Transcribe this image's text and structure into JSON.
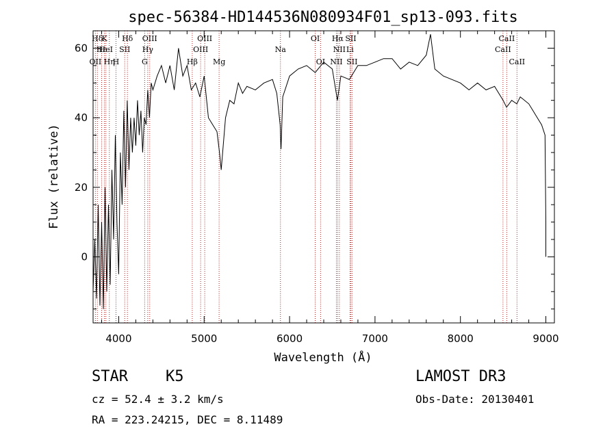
{
  "chart_data": {
    "type": "line",
    "title": "spec-56384-HD144536N080934F01_sp13-093.fits",
    "xlabel": "Wavelength (Å)",
    "ylabel": "Flux (relative)",
    "xlim": [
      3700,
      9100
    ],
    "ylim": [
      -19,
      65
    ],
    "xticks": [
      4000,
      5000,
      6000,
      7000,
      8000,
      9000
    ],
    "yticks": [
      0,
      20,
      40,
      60
    ],
    "series": [
      {
        "name": "flux",
        "x": [
          3700,
          3720,
          3740,
          3760,
          3780,
          3800,
          3820,
          3840,
          3860,
          3880,
          3900,
          3920,
          3940,
          3960,
          3980,
          4000,
          4020,
          4040,
          4060,
          4080,
          4100,
          4120,
          4140,
          4160,
          4180,
          4200,
          4220,
          4240,
          4260,
          4280,
          4300,
          4320,
          4340,
          4360,
          4380,
          4400,
          4450,
          4500,
          4550,
          4600,
          4650,
          4700,
          4750,
          4800,
          4850,
          4900,
          4950,
          5000,
          5050,
          5100,
          5150,
          5180,
          5200,
          5250,
          5300,
          5350,
          5400,
          5450,
          5500,
          5600,
          5700,
          5800,
          5850,
          5890,
          5900,
          5920,
          6000,
          6100,
          6200,
          6300,
          6400,
          6500,
          6560,
          6600,
          6700,
          6800,
          6900,
          7000,
          7100,
          7200,
          7300,
          7400,
          7500,
          7600,
          7650,
          7700,
          7800,
          7900,
          8000,
          8100,
          8200,
          8300,
          8400,
          8500,
          8540,
          8600,
          8660,
          8700,
          8800,
          8850,
          8900,
          8950,
          8990,
          9000,
          9000
        ],
        "y": [
          -10,
          5,
          -12,
          15,
          -14,
          10,
          -15,
          20,
          -10,
          15,
          -8,
          25,
          5,
          35,
          10,
          -5,
          30,
          15,
          42,
          20,
          45,
          25,
          40,
          30,
          40,
          32,
          45,
          35,
          42,
          30,
          40,
          38,
          48,
          40,
          50,
          48,
          52,
          55,
          50,
          55,
          48,
          60,
          52,
          55,
          48,
          50,
          46,
          52,
          40,
          38,
          36,
          30,
          25,
          40,
          45,
          44,
          50,
          47,
          49,
          48,
          50,
          51,
          47,
          38,
          31,
          46,
          52,
          54,
          55,
          53,
          56,
          54,
          45,
          52,
          51,
          55,
          55,
          56,
          57,
          57,
          54,
          56,
          55,
          58,
          64,
          54,
          52,
          51,
          50,
          48,
          50,
          48,
          49,
          45,
          43,
          45,
          44,
          46,
          44,
          42,
          40,
          38,
          35,
          10,
          0
        ]
      }
    ],
    "lines": [
      {
        "label": "Hδ",
        "wl": 3750,
        "row": 1,
        "side": "top"
      },
      {
        "label": "Hε",
        "wl": 3800,
        "row": 2,
        "side": "top"
      },
      {
        "label": "OII",
        "wl": 3727,
        "row": 3,
        "side": "top"
      },
      {
        "label": "K",
        "wl": 3833,
        "row": 1,
        "side": "top"
      },
      {
        "label": "HeI",
        "wl": 3850,
        "row": 2,
        "side": "top"
      },
      {
        "label": "Hη",
        "wl": 3890,
        "row": 3,
        "side": "top"
      },
      {
        "label": "Hδ",
        "wl": 4102,
        "row": 1,
        "side": "top"
      },
      {
        "label": "SII",
        "wl": 4070,
        "row": 2,
        "side": "top"
      },
      {
        "label": "H",
        "wl": 3968,
        "row": 3,
        "side": "top"
      },
      {
        "label": "OIII",
        "wl": 4363,
        "row": 1,
        "side": "top"
      },
      {
        "label": "Hγ",
        "wl": 4340,
        "row": 2,
        "side": "top"
      },
      {
        "label": "G",
        "wl": 4304,
        "row": 3,
        "side": "top"
      },
      {
        "label": "OIII",
        "wl": 5007,
        "row": 1,
        "side": "top"
      },
      {
        "label": "OIII",
        "wl": 4959,
        "row": 2,
        "side": "top"
      },
      {
        "label": "Hβ",
        "wl": 4861,
        "row": 3,
        "side": "top"
      },
      {
        "label": "Mg",
        "wl": 5175,
        "row": 3,
        "side": "top"
      },
      {
        "label": "Na",
        "wl": 5893,
        "row": 2,
        "side": "top"
      },
      {
        "label": "OI",
        "wl": 6300,
        "row": 1,
        "side": "top"
      },
      {
        "label": "OI",
        "wl": 6363,
        "row": 3,
        "side": "top"
      },
      {
        "label": "Hα",
        "wl": 6563,
        "row": 1,
        "side": "top"
      },
      {
        "label": "NII",
        "wl": 6583,
        "row": 2,
        "side": "top"
      },
      {
        "label": "NII",
        "wl": 6548,
        "row": 3,
        "side": "top"
      },
      {
        "label": "SII",
        "wl": 6716,
        "row": 1,
        "side": "top"
      },
      {
        "label": "Li",
        "wl": 6707,
        "row": 2,
        "side": "top"
      },
      {
        "label": "SII",
        "wl": 6731,
        "row": 3,
        "side": "top"
      },
      {
        "label": "CaII",
        "wl": 8542,
        "row": 1,
        "side": "top"
      },
      {
        "label": "CaII",
        "wl": 8498,
        "row": 2,
        "side": "top"
      },
      {
        "label": "CaII",
        "wl": 8662,
        "row": 3,
        "side": "top"
      }
    ]
  },
  "info": {
    "class": "STAR",
    "subclass": "K5",
    "survey": "LAMOST DR3",
    "redshift": "cz = 52.4 ± 3.2 km/s",
    "obs_date": "Obs-Date: 20130401",
    "coords": "RA = 223.24215, DEC =   8.11489"
  },
  "colors": {
    "spectrum": "#000000",
    "line_marker": "#b22222"
  }
}
